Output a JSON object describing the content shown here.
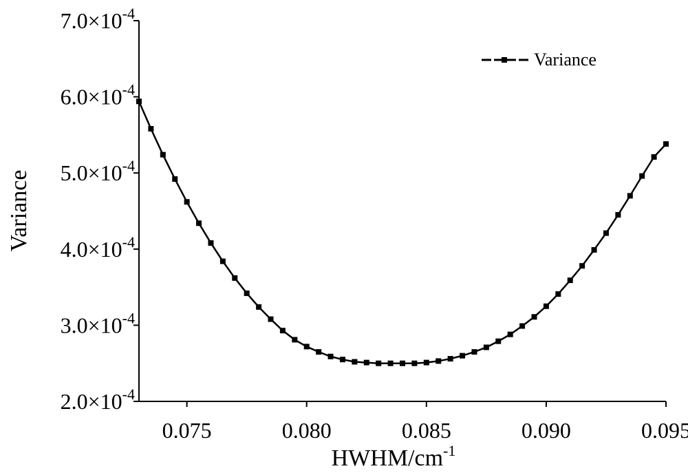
{
  "chart_data": {
    "type": "line",
    "title": "",
    "xlabel": "HWHM/cm",
    "xlabel_superscript": "-1",
    "ylabel": "Variance",
    "xlim": [
      0.073,
      0.095
    ],
    "ylim": [
      0.0002,
      0.0007
    ],
    "xticks": [
      0.075,
      0.08,
      0.085,
      0.09,
      0.095
    ],
    "xtick_labels": [
      "0.075",
      "0.080",
      "0.085",
      "0.090",
      "0.095"
    ],
    "yticks": [
      0.0002,
      0.0003,
      0.0004,
      0.0005,
      0.0006,
      0.0007
    ],
    "ytick_labels": [
      {
        "mantissa": "2.0×10",
        "exponent": "-4"
      },
      {
        "mantissa": "3.0×10",
        "exponent": "-4"
      },
      {
        "mantissa": "4.0×10",
        "exponent": "-4"
      },
      {
        "mantissa": "5.0×10",
        "exponent": "-4"
      },
      {
        "mantissa": "6.0×10",
        "exponent": "-4"
      },
      {
        "mantissa": "7.0×10",
        "exponent": "-4"
      }
    ],
    "grid": false,
    "legend_position": "top-right",
    "series": [
      {
        "name": "Variance",
        "color": "#000000",
        "marker": "square",
        "x": [
          0.073,
          0.0735,
          0.074,
          0.0745,
          0.075,
          0.0755,
          0.076,
          0.0765,
          0.077,
          0.0775,
          0.078,
          0.0785,
          0.079,
          0.0795,
          0.08,
          0.0805,
          0.081,
          0.0815,
          0.082,
          0.0825,
          0.083,
          0.0835,
          0.084,
          0.0845,
          0.085,
          0.0855,
          0.086,
          0.0865,
          0.087,
          0.0875,
          0.088,
          0.0885,
          0.089,
          0.0895,
          0.09,
          0.0905,
          0.091,
          0.0915,
          0.092,
          0.0925,
          0.093,
          0.0935,
          0.094,
          0.0945,
          0.095
        ],
        "y": [
          0.000594,
          0.000558,
          0.000524,
          0.000492,
          0.000462,
          0.000434,
          0.000408,
          0.000384,
          0.000362,
          0.000342,
          0.000324,
          0.000308,
          0.000293,
          0.000281,
          0.000272,
          0.000265,
          0.000259,
          0.000255,
          0.000252,
          0.000251,
          0.00025,
          0.00025,
          0.00025,
          0.00025,
          0.000251,
          0.000253,
          0.000256,
          0.00026,
          0.000265,
          0.000271,
          0.000279,
          0.000288,
          0.000299,
          0.000311,
          0.000325,
          0.000341,
          0.000359,
          0.000378,
          0.000399,
          0.000421,
          0.000445,
          0.00047,
          0.000496,
          0.000521,
          0.000538
        ]
      }
    ]
  }
}
